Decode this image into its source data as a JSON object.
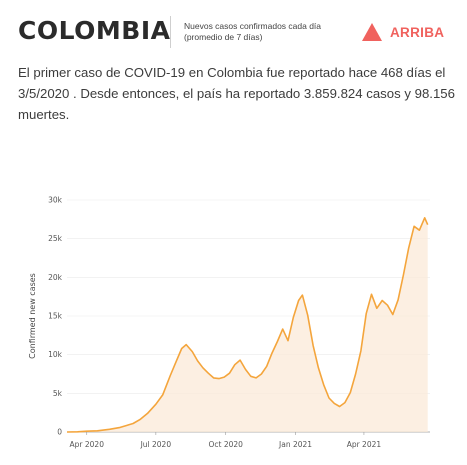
{
  "header": {
    "country": "COLOMBIA",
    "metric_line1": "Nuevos casos confirmados cada día",
    "metric_line2": "(promedio de 7 días)",
    "trend_label": "ARRIBA",
    "trend_icon": "triangle-up-icon",
    "trend_color": "#f0625e"
  },
  "summary": "El primer caso de COVID-19 en Colombia fue reportado hace 468 días el 3/5/2020 . Desde entonces, el país ha reportado 3.859.824 casos y 98.156 muertes.",
  "chart_data": {
    "type": "line",
    "ylabel": "Confirmed new cases",
    "xlabel": "",
    "line_color": "#f4a53c",
    "area_color": "#fbe9d8",
    "ylim": [
      0,
      30000
    ],
    "y_ticks": [
      {
        "value": 0,
        "label": "0"
      },
      {
        "value": 5000,
        "label": "5k"
      },
      {
        "value": 10000,
        "label": "10k"
      },
      {
        "value": 15000,
        "label": "15k"
      },
      {
        "value": 20000,
        "label": "20k"
      },
      {
        "value": 25000,
        "label": "25k"
      },
      {
        "value": 30000,
        "label": "30k"
      }
    ],
    "x_ticks": [
      {
        "date": "2020-04-01",
        "label": "Apr 2020"
      },
      {
        "date": "2020-07-01",
        "label": "Jul 2020"
      },
      {
        "date": "2020-10-01",
        "label": "Oct 2020"
      },
      {
        "date": "2021-01-01",
        "label": "Jan 2021"
      },
      {
        "date": "2021-04-01",
        "label": "Apr 2021"
      }
    ],
    "series": [
      {
        "x": [
          "2020-03-06",
          "2020-03-20",
          "2020-04-01",
          "2020-04-15",
          "2020-05-01",
          "2020-05-15",
          "2020-06-01",
          "2020-06-10",
          "2020-06-20",
          "2020-07-01",
          "2020-07-10",
          "2020-07-20",
          "2020-07-28",
          "2020-08-04",
          "2020-08-10",
          "2020-08-18",
          "2020-08-25",
          "2020-09-01",
          "2020-09-08",
          "2020-09-15",
          "2020-09-22",
          "2020-09-29",
          "2020-10-06",
          "2020-10-13",
          "2020-10-20",
          "2020-10-27",
          "2020-11-03",
          "2020-11-10",
          "2020-11-17",
          "2020-11-24",
          "2020-12-01",
          "2020-12-08",
          "2020-12-15",
          "2020-12-22",
          "2020-12-29",
          "2021-01-05",
          "2021-01-10",
          "2021-01-17",
          "2021-01-24",
          "2021-01-31",
          "2021-02-07",
          "2021-02-14",
          "2021-02-21",
          "2021-02-28",
          "2021-03-07",
          "2021-03-14",
          "2021-03-21",
          "2021-03-28",
          "2021-04-04",
          "2021-04-11",
          "2021-04-18",
          "2021-04-25",
          "2021-05-02",
          "2021-05-09",
          "2021-05-16",
          "2021-05-23",
          "2021-05-30",
          "2021-06-06",
          "2021-06-13",
          "2021-06-20",
          "2021-06-24"
        ],
        "y": [
          0,
          30,
          100,
          150,
          350,
          600,
          1100,
          1600,
          2400,
          3600,
          4800,
          7300,
          9200,
          10800,
          11300,
          10400,
          9200,
          8300,
          7600,
          7000,
          6900,
          7100,
          7600,
          8700,
          9300,
          8100,
          7200,
          7000,
          7500,
          8500,
          10200,
          11700,
          13300,
          11800,
          14800,
          17000,
          17700,
          15100,
          11200,
          8300,
          6100,
          4400,
          3700,
          3300,
          3800,
          5100,
          7500,
          10500,
          15300,
          17800,
          16000,
          17000,
          16400,
          15200,
          17100,
          20300,
          23800,
          26600,
          26100,
          27700,
          26800
        ]
      }
    ]
  }
}
